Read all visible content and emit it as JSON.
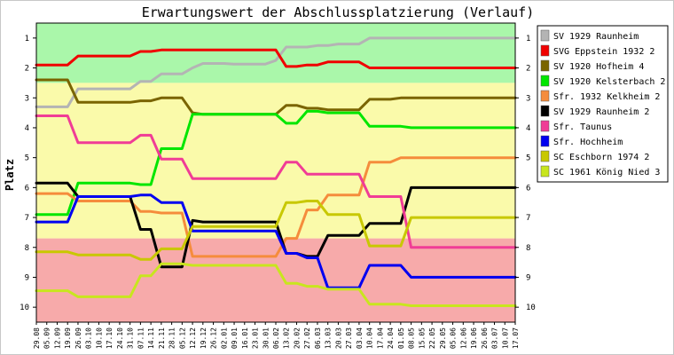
{
  "chart_data": {
    "type": "line",
    "title": "Erwartungswert der Abschlussplatzierung (Verlauf)",
    "xlabel": "",
    "ylabel": "Platz",
    "ylim": [
      0.5,
      10.5
    ],
    "y_inverted": true,
    "yticks": [
      1,
      2,
      3,
      4,
      5,
      6,
      7,
      8,
      9,
      10
    ],
    "grid": false,
    "legend_position": "right",
    "background_bands": [
      {
        "from": 0.5,
        "to": 2.5,
        "color": "#aaf7aa"
      },
      {
        "from": 2.5,
        "to": 7.7,
        "color": "#fafaaa"
      },
      {
        "from": 7.7,
        "to": 10.5,
        "color": "#f7aaaa"
      }
    ],
    "x": [
      "29.08",
      "05.09",
      "12.09",
      "19.09",
      "26.09",
      "03.10",
      "10.10",
      "17.10",
      "24.10",
      "31.10",
      "07.11",
      "14.11",
      "21.11",
      "28.11",
      "05.12",
      "12.12",
      "19.12",
      "26.12",
      "02.01",
      "09.01",
      "16.01",
      "23.01",
      "30.01",
      "06.02",
      "13.02",
      "20.02",
      "27.02",
      "06.03",
      "13.03",
      "20.03",
      "27.03",
      "03.04",
      "10.04",
      "17.04",
      "24.04",
      "01.05",
      "08.05",
      "15.05",
      "22.05",
      "29.05",
      "05.06",
      "12.06",
      "19.06",
      "26.06",
      "03.07",
      "10.07",
      "17.07"
    ],
    "series": [
      {
        "name": "SV 1929 Raunheim",
        "color": "#b4b4b4",
        "values": [
          3.3,
          3.3,
          3.3,
          3.3,
          2.7,
          2.7,
          2.7,
          2.7,
          2.7,
          2.7,
          2.45,
          2.45,
          2.2,
          2.2,
          2.2,
          2.0,
          1.85,
          1.85,
          1.85,
          1.87,
          1.87,
          1.87,
          1.87,
          1.75,
          1.3,
          1.3,
          1.3,
          1.25,
          1.25,
          1.2,
          1.2,
          1.2,
          1.0,
          1.0,
          1.0,
          1.0,
          1.0,
          1.0,
          1.0,
          1.0,
          1.0,
          1.0,
          1.0,
          1.0,
          1.0,
          1.0,
          1.0
        ]
      },
      {
        "name": "SVG Eppstein 1932 2",
        "color": "#f00000",
        "values": [
          1.9,
          1.9,
          1.9,
          1.9,
          1.6,
          1.6,
          1.6,
          1.6,
          1.6,
          1.6,
          1.45,
          1.45,
          1.4,
          1.4,
          1.4,
          1.4,
          1.4,
          1.4,
          1.4,
          1.4,
          1.4,
          1.4,
          1.4,
          1.4,
          1.95,
          1.95,
          1.9,
          1.9,
          1.8,
          1.8,
          1.8,
          1.8,
          2.0,
          2.0,
          2.0,
          2.0,
          2.0,
          2.0,
          2.0,
          2.0,
          2.0,
          2.0,
          2.0,
          2.0,
          2.0,
          2.0,
          2.0
        ]
      },
      {
        "name": "SV 1920 Hofheim 4",
        "color": "#7a6400",
        "values": [
          2.4,
          2.4,
          2.4,
          2.4,
          3.15,
          3.15,
          3.15,
          3.15,
          3.15,
          3.15,
          3.1,
          3.1,
          3.0,
          3.0,
          3.0,
          3.5,
          3.55,
          3.55,
          3.55,
          3.55,
          3.55,
          3.55,
          3.55,
          3.55,
          3.25,
          3.25,
          3.35,
          3.35,
          3.4,
          3.4,
          3.4,
          3.4,
          3.05,
          3.05,
          3.05,
          3.0,
          3.0,
          3.0,
          3.0,
          3.0,
          3.0,
          3.0,
          3.0,
          3.0,
          3.0,
          3.0,
          3.0
        ]
      },
      {
        "name": "SV 1920 Kelsterbach 2",
        "color": "#00e600",
        "values": [
          6.9,
          6.9,
          6.9,
          6.9,
          5.85,
          5.85,
          5.85,
          5.85,
          5.85,
          5.85,
          5.9,
          5.9,
          4.7,
          4.7,
          4.7,
          3.55,
          3.55,
          3.55,
          3.55,
          3.55,
          3.55,
          3.55,
          3.55,
          3.55,
          3.85,
          3.85,
          3.45,
          3.45,
          3.5,
          3.5,
          3.5,
          3.5,
          3.95,
          3.95,
          3.95,
          3.95,
          4.0,
          4.0,
          4.0,
          4.0,
          4.0,
          4.0,
          4.0,
          4.0,
          4.0,
          4.0,
          4.0
        ]
      },
      {
        "name": "Sfr. 1932 Kelkheim 2",
        "color": "#f58c3c",
        "values": [
          6.2,
          6.2,
          6.2,
          6.2,
          6.45,
          6.45,
          6.45,
          6.45,
          6.45,
          6.45,
          6.8,
          6.8,
          6.85,
          6.85,
          6.85,
          8.3,
          8.3,
          8.3,
          8.3,
          8.3,
          8.3,
          8.3,
          8.3,
          8.3,
          7.7,
          7.7,
          6.75,
          6.75,
          6.25,
          6.25,
          6.25,
          6.25,
          5.15,
          5.15,
          5.15,
          5.0,
          5.0,
          5.0,
          5.0,
          5.0,
          5.0,
          5.0,
          5.0,
          5.0,
          5.0,
          5.0,
          5.0
        ]
      },
      {
        "name": "SV 1929 Raunheim 2",
        "color": "#000000",
        "values": [
          5.85,
          5.85,
          5.85,
          5.85,
          6.3,
          6.3,
          6.3,
          6.3,
          6.3,
          6.3,
          7.4,
          7.4,
          8.65,
          8.65,
          8.65,
          7.1,
          7.15,
          7.15,
          7.15,
          7.15,
          7.15,
          7.15,
          7.15,
          7.15,
          8.2,
          8.2,
          8.3,
          8.3,
          7.6,
          7.6,
          7.6,
          7.6,
          7.2,
          7.2,
          7.2,
          7.2,
          6.0,
          6.0,
          6.0,
          6.0,
          6.0,
          6.0,
          6.0,
          6.0,
          6.0,
          6.0,
          6.0
        ]
      },
      {
        "name": "Sfr. Taunus",
        "color": "#f03c96",
        "values": [
          3.6,
          3.6,
          3.6,
          3.6,
          4.5,
          4.5,
          4.5,
          4.5,
          4.5,
          4.5,
          4.25,
          4.25,
          5.05,
          5.05,
          5.05,
          5.7,
          5.7,
          5.7,
          5.7,
          5.7,
          5.7,
          5.7,
          5.7,
          5.7,
          5.15,
          5.15,
          5.55,
          5.55,
          5.55,
          5.55,
          5.55,
          5.55,
          6.3,
          6.3,
          6.3,
          6.3,
          8.0,
          8.0,
          8.0,
          8.0,
          8.0,
          8.0,
          8.0,
          8.0,
          8.0,
          8.0,
          8.0
        ]
      },
      {
        "name": "Sfr. Hochheim",
        "color": "#0000f0",
        "values": [
          7.15,
          7.15,
          7.15,
          7.15,
          6.3,
          6.3,
          6.3,
          6.3,
          6.3,
          6.3,
          6.25,
          6.25,
          6.5,
          6.5,
          6.5,
          7.45,
          7.45,
          7.45,
          7.45,
          7.45,
          7.45,
          7.45,
          7.45,
          7.45,
          8.2,
          8.2,
          8.35,
          8.35,
          9.35,
          9.35,
          9.35,
          9.35,
          8.6,
          8.6,
          8.6,
          8.6,
          9.0,
          9.0,
          9.0,
          9.0,
          9.0,
          9.0,
          9.0,
          9.0,
          9.0,
          9.0,
          9.0
        ]
      },
      {
        "name": "SC Eschborn 1974 2",
        "color": "#c8c800",
        "values": [
          8.15,
          8.15,
          8.15,
          8.15,
          8.25,
          8.25,
          8.25,
          8.25,
          8.25,
          8.25,
          8.4,
          8.4,
          8.05,
          8.05,
          8.05,
          7.3,
          7.3,
          7.3,
          7.3,
          7.3,
          7.3,
          7.3,
          7.3,
          7.3,
          6.5,
          6.5,
          6.45,
          6.45,
          6.9,
          6.9,
          6.9,
          6.9,
          7.95,
          7.95,
          7.95,
          7.95,
          7.0,
          7.0,
          7.0,
          7.0,
          7.0,
          7.0,
          7.0,
          7.0,
          7.0,
          7.0,
          7.0
        ]
      },
      {
        "name": "SC 1961 König Nied 3",
        "color": "#c8e61e",
        "values": [
          9.45,
          9.45,
          9.45,
          9.45,
          9.65,
          9.65,
          9.65,
          9.65,
          9.65,
          9.65,
          8.95,
          8.95,
          8.55,
          8.55,
          8.55,
          8.6,
          8.6,
          8.6,
          8.6,
          8.6,
          8.6,
          8.6,
          8.6,
          8.6,
          9.2,
          9.2,
          9.3,
          9.3,
          9.4,
          9.4,
          9.4,
          9.4,
          9.9,
          9.9,
          9.9,
          9.9,
          9.95,
          9.95,
          9.95,
          9.95,
          9.95,
          9.95,
          9.95,
          9.95,
          9.95,
          9.95,
          9.95
        ]
      }
    ]
  }
}
